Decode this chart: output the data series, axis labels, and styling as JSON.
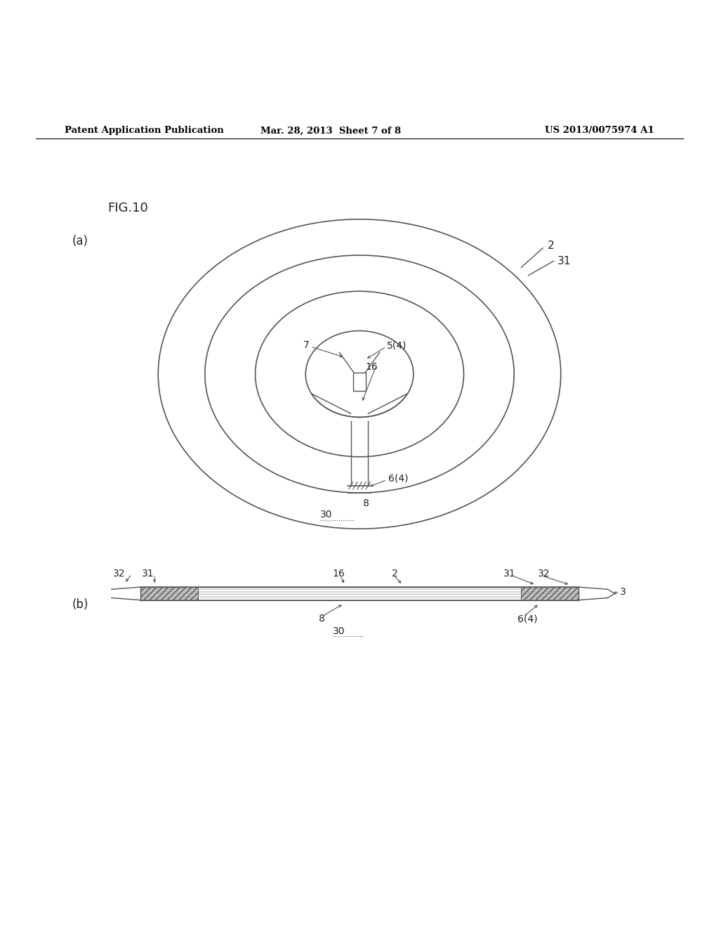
{
  "header_left": "Patent Application Publication",
  "header_center": "Mar. 28, 2013  Sheet 7 of 8",
  "header_right": "US 2013/0075974 A1",
  "fig_label": "FIG.10",
  "sub_a_label": "(a)",
  "sub_b_label": "(b)",
  "background_color": "#ffffff",
  "line_color": "#555555",
  "text_color": "#222222",
  "header_color": "#000000"
}
